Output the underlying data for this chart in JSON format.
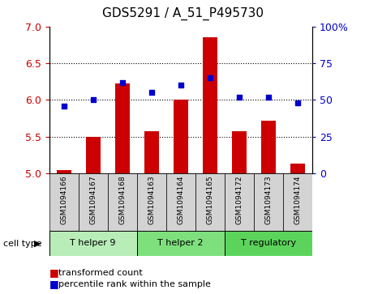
{
  "title": "GDS5291 / A_51_P495730",
  "samples": [
    "GSM1094166",
    "GSM1094167",
    "GSM1094168",
    "GSM1094163",
    "GSM1094164",
    "GSM1094165",
    "GSM1094172",
    "GSM1094173",
    "GSM1094174"
  ],
  "bar_values": [
    5.05,
    5.5,
    6.22,
    5.57,
    6.0,
    6.85,
    5.57,
    5.72,
    5.13
  ],
  "dot_values": [
    46,
    50,
    62,
    55,
    60,
    65,
    52,
    52,
    48
  ],
  "ylim_left": [
    5.0,
    7.0
  ],
  "ylim_right": [
    0,
    100
  ],
  "yticks_left": [
    5.0,
    5.5,
    6.0,
    6.5,
    7.0
  ],
  "yticks_right": [
    0,
    25,
    50,
    75,
    100
  ],
  "ytick_labels_right": [
    "0",
    "25",
    "50",
    "75",
    "100%"
  ],
  "bar_color": "#cc0000",
  "dot_color": "#0000cc",
  "bar_width": 0.5,
  "cell_types": [
    {
      "label": "T helper 9",
      "span": [
        0,
        3
      ],
      "color": "#b8edb8"
    },
    {
      "label": "T helper 2",
      "span": [
        3,
        6
      ],
      "color": "#7de07d"
    },
    {
      "label": "T regulatory",
      "span": [
        6,
        9
      ],
      "color": "#5cd45c"
    }
  ],
  "cell_type_label": "cell type",
  "legend_bar": "transformed count",
  "legend_dot": "percentile rank within the sample",
  "grid_lines": [
    5.5,
    6.0,
    6.5
  ],
  "background_plot": "#ffffff",
  "background_xtick": "#d3d3d3",
  "title_fontsize": 11,
  "tick_fontsize": 9,
  "label_fontsize": 8
}
